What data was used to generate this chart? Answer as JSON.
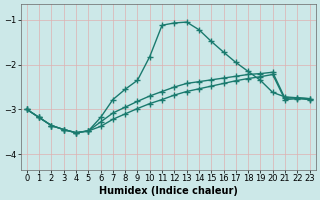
{
  "xlabel": "Humidex (Indice chaleur)",
  "background_color": "#cce8e8",
  "grid_color": "#deb0b0",
  "line_color": "#1a7a6e",
  "xlim": [
    -0.5,
    23.5
  ],
  "ylim": [
    -4.35,
    -0.65
  ],
  "yticks": [
    -4,
    -3,
    -2,
    -1
  ],
  "xticks": [
    0,
    1,
    2,
    3,
    4,
    5,
    6,
    7,
    8,
    9,
    10,
    11,
    12,
    13,
    14,
    15,
    16,
    17,
    18,
    19,
    20,
    21,
    22,
    23
  ],
  "curve1_x": [
    0,
    1,
    2,
    3,
    4,
    5,
    6,
    7,
    8,
    9,
    10,
    11,
    12,
    13,
    14,
    15,
    16,
    17,
    18,
    19,
    20,
    21,
    22,
    23
  ],
  "curve1_y": [
    -3.0,
    -3.18,
    -3.36,
    -3.45,
    -3.52,
    -3.48,
    -3.18,
    -2.78,
    -2.55,
    -2.35,
    -1.82,
    -1.12,
    -1.07,
    -1.05,
    -1.22,
    -1.48,
    -1.72,
    -1.95,
    -2.15,
    -2.35,
    -2.62,
    -2.72,
    -2.74,
    -2.76
  ],
  "curve2_x": [
    0,
    1,
    2,
    3,
    4,
    5,
    6,
    7,
    8,
    9,
    10,
    11,
    12,
    13,
    14,
    15,
    16,
    17,
    18,
    19,
    20,
    21,
    22,
    23
  ],
  "curve2_y": [
    -3.0,
    -3.18,
    -3.36,
    -3.45,
    -3.52,
    -3.48,
    -3.28,
    -3.08,
    -2.95,
    -2.82,
    -2.7,
    -2.6,
    -2.5,
    -2.42,
    -2.38,
    -2.34,
    -2.3,
    -2.26,
    -2.22,
    -2.2,
    -2.17,
    -2.75,
    -2.74,
    -2.76
  ],
  "curve3_x": [
    0,
    1,
    2,
    3,
    4,
    5,
    6,
    7,
    8,
    9,
    10,
    11,
    12,
    13,
    14,
    15,
    16,
    17,
    18,
    19,
    20,
    21,
    22,
    23
  ],
  "curve3_y": [
    -3.0,
    -3.18,
    -3.36,
    -3.45,
    -3.52,
    -3.48,
    -3.38,
    -3.22,
    -3.1,
    -2.98,
    -2.87,
    -2.78,
    -2.68,
    -2.6,
    -2.54,
    -2.48,
    -2.42,
    -2.36,
    -2.31,
    -2.27,
    -2.22,
    -2.78,
    -2.76,
    -2.78
  ],
  "line_width": 1.0,
  "marker": "+",
  "marker_size": 4,
  "tick_fontsize": 6,
  "xlabel_fontsize": 7
}
